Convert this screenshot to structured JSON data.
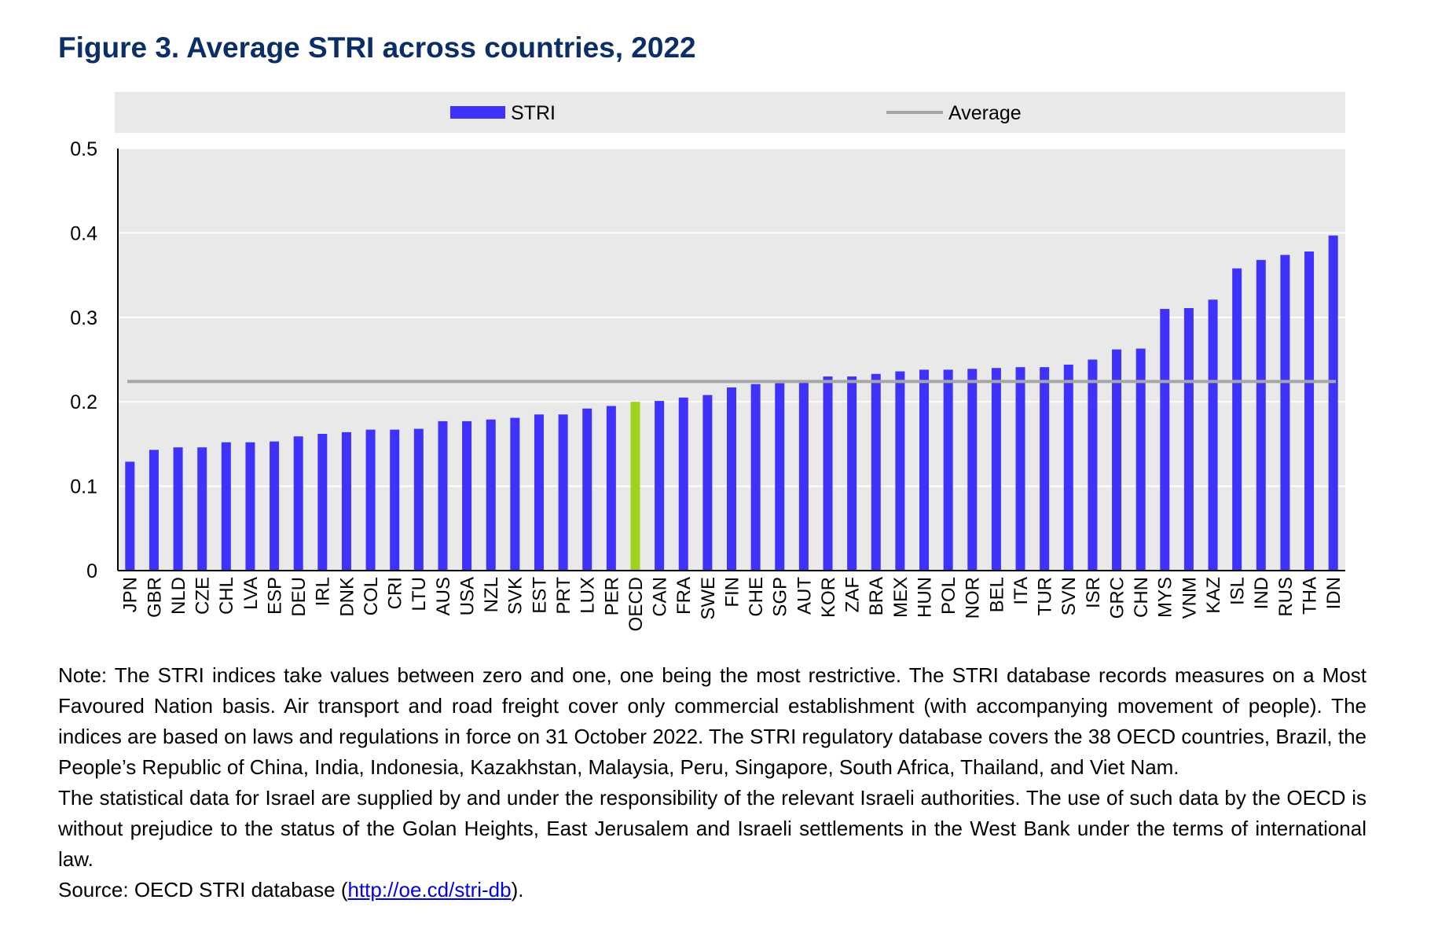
{
  "title": "Figure 3. Average STRI across countries, 2022",
  "chart_data": {
    "type": "bar",
    "categories": [
      "JPN",
      "GBR",
      "NLD",
      "CZE",
      "CHL",
      "LVA",
      "ESP",
      "DEU",
      "IRL",
      "DNK",
      "COL",
      "CRI",
      "LTU",
      "AUS",
      "USA",
      "NZL",
      "SVK",
      "EST",
      "PRT",
      "LUX",
      "PER",
      "OECD",
      "CAN",
      "FRA",
      "SWE",
      "FIN",
      "CHE",
      "SGP",
      "AUT",
      "KOR",
      "ZAF",
      "BRA",
      "MEX",
      "HUN",
      "POL",
      "NOR",
      "BEL",
      "ITA",
      "TUR",
      "SVN",
      "ISR",
      "GRC",
      "CHN",
      "MYS",
      "VNM",
      "KAZ",
      "ISL",
      "IND",
      "RUS",
      "THA",
      "IDN"
    ],
    "series": [
      {
        "name": "STRI",
        "values": [
          0.129,
          0.143,
          0.146,
          0.146,
          0.152,
          0.152,
          0.153,
          0.159,
          0.162,
          0.164,
          0.167,
          0.167,
          0.168,
          0.177,
          0.177,
          0.179,
          0.181,
          0.185,
          0.185,
          0.192,
          0.195,
          0.2,
          0.201,
          0.205,
          0.208,
          0.217,
          0.221,
          0.222,
          0.224,
          0.23,
          0.23,
          0.233,
          0.236,
          0.238,
          0.238,
          0.239,
          0.24,
          0.241,
          0.241,
          0.244,
          0.25,
          0.262,
          0.263,
          0.31,
          0.311,
          0.321,
          0.358,
          0.368,
          0.374,
          0.378,
          0.397
        ]
      }
    ],
    "average": {
      "name": "Average",
      "value": 0.224
    },
    "highlight_category": "OECD",
    "colors": {
      "bar": "#3f32fa",
      "highlight": "#9fd21a",
      "average": "#a6a6a6",
      "plot_bg": "#e9e9e9",
      "grid": "#ffffff",
      "axis": "#000000"
    },
    "ylim": [
      0,
      0.5
    ],
    "yticks": [
      0,
      0.1,
      0.2,
      0.3,
      0.4,
      0.5
    ],
    "ytick_labels": [
      "0",
      "0.1",
      "0.2",
      "0.3",
      "0.4",
      "0.5"
    ],
    "xlabel": "",
    "ylabel": "",
    "grid": true,
    "legend": {
      "position": "top",
      "entries": [
        "STRI",
        "Average"
      ]
    }
  },
  "notes": {
    "note1": "Note: The STRI indices take values between zero and one, one being the most restrictive. The STRI database records measures on a Most Favoured Nation basis. Air transport and road freight cover only commercial establishment (with accompanying movement of people). The indices are based on laws and regulations in force on 31 October 2022. The STRI regulatory database covers the 38 OECD countries, Brazil, the People’s Republic of China, India, Indonesia, Kazakhstan, Malaysia, Peru, Singapore, South Africa, Thailand, and Viet Nam.",
    "note2": "The statistical data for Israel are supplied by and under the responsibility of the relevant Israeli authorities. The use of such data by the OECD is without prejudice to the status of the Golan Heights, East Jerusalem and Israeli settlements in the West Bank under the terms of international law.",
    "source_prefix": "Source: OECD STRI database (",
    "source_link": "http://oe.cd/stri-db",
    "source_suffix": ")."
  }
}
